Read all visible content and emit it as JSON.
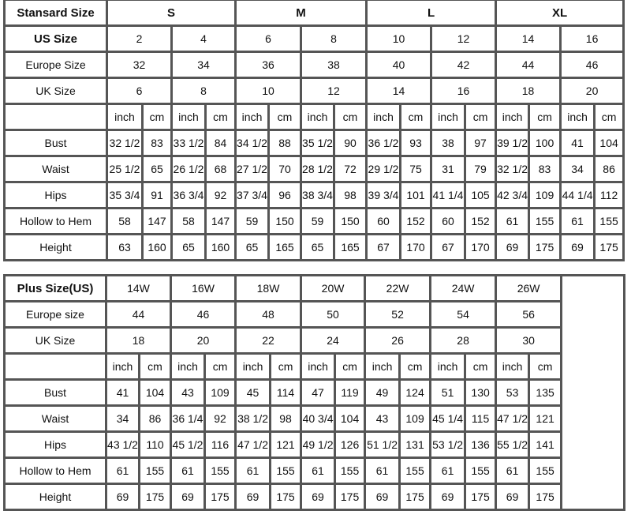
{
  "standard": {
    "header_label": "Stansard Size",
    "groups": [
      "S",
      "M",
      "L",
      "XL"
    ],
    "us_label": "US Size",
    "us_sizes": [
      "2",
      "4",
      "6",
      "8",
      "10",
      "12",
      "14",
      "16"
    ],
    "europe_label": "Europe Size",
    "europe_sizes": [
      "32",
      "34",
      "36",
      "38",
      "40",
      "42",
      "44",
      "46"
    ],
    "uk_label": "UK Size",
    "uk_sizes": [
      "6",
      "8",
      "10",
      "12",
      "14",
      "16",
      "18",
      "20"
    ],
    "units": {
      "inch": "inch",
      "cm": "cm"
    },
    "measurements": [
      {
        "label": "Bust",
        "values": [
          "32 1/2",
          "83",
          "33 1/2",
          "84",
          "34 1/2",
          "88",
          "35 1/2",
          "90",
          "36 1/2",
          "93",
          "38",
          "97",
          "39 1/2",
          "100",
          "41",
          "104"
        ]
      },
      {
        "label": "Waist",
        "values": [
          "25 1/2",
          "65",
          "26 1/2",
          "68",
          "27 1/2",
          "70",
          "28 1/2",
          "72",
          "29 1/2",
          "75",
          "31",
          "79",
          "32 1/2",
          "83",
          "34",
          "86"
        ]
      },
      {
        "label": "Hips",
        "values": [
          "35 3/4",
          "91",
          "36 3/4",
          "92",
          "37 3/4",
          "96",
          "38 3/4",
          "98",
          "39 3/4",
          "101",
          "41 1/4",
          "105",
          "42 3/4",
          "109",
          "44 1/4",
          "112"
        ]
      },
      {
        "label": "Hollow to Hem",
        "values": [
          "58",
          "147",
          "58",
          "147",
          "59",
          "150",
          "59",
          "150",
          "60",
          "152",
          "60",
          "152",
          "61",
          "155",
          "61",
          "155"
        ]
      },
      {
        "label": "Height",
        "values": [
          "63",
          "160",
          "65",
          "160",
          "65",
          "165",
          "65",
          "165",
          "67",
          "170",
          "67",
          "170",
          "69",
          "175",
          "69",
          "175"
        ]
      }
    ]
  },
  "plus": {
    "header_label": "Plus Size(US)",
    "us_sizes": [
      "14W",
      "16W",
      "18W",
      "20W",
      "22W",
      "24W",
      "26W"
    ],
    "europe_label": "Europe size",
    "europe_sizes": [
      "44",
      "46",
      "48",
      "50",
      "52",
      "54",
      "56"
    ],
    "uk_label": "UK Size",
    "uk_sizes": [
      "18",
      "20",
      "22",
      "24",
      "26",
      "28",
      "30"
    ],
    "units": {
      "inch": "inch",
      "cm": "cm"
    },
    "measurements": [
      {
        "label": "Bust",
        "values": [
          "41",
          "104",
          "43",
          "109",
          "45",
          "114",
          "47",
          "119",
          "49",
          "124",
          "51",
          "130",
          "53",
          "135"
        ]
      },
      {
        "label": "Waist",
        "values": [
          "34",
          "86",
          "36 1/4",
          "92",
          "38 1/2",
          "98",
          "40 3/4",
          "104",
          "43",
          "109",
          "45 1/4",
          "115",
          "47 1/2",
          "121"
        ]
      },
      {
        "label": "Hips",
        "values": [
          "43 1/2",
          "110",
          "45 1/2",
          "116",
          "47 1/2",
          "121",
          "49 1/2",
          "126",
          "51 1/2",
          "131",
          "53 1/2",
          "136",
          "55 1/2",
          "141"
        ]
      },
      {
        "label": "Hollow to Hem",
        "values": [
          "61",
          "155",
          "61",
          "155",
          "61",
          "155",
          "61",
          "155",
          "61",
          "155",
          "61",
          "155",
          "61",
          "155"
        ]
      },
      {
        "label": "Height",
        "values": [
          "69",
          "175",
          "69",
          "175",
          "69",
          "175",
          "69",
          "175",
          "69",
          "175",
          "69",
          "175",
          "69",
          "175"
        ]
      }
    ]
  }
}
